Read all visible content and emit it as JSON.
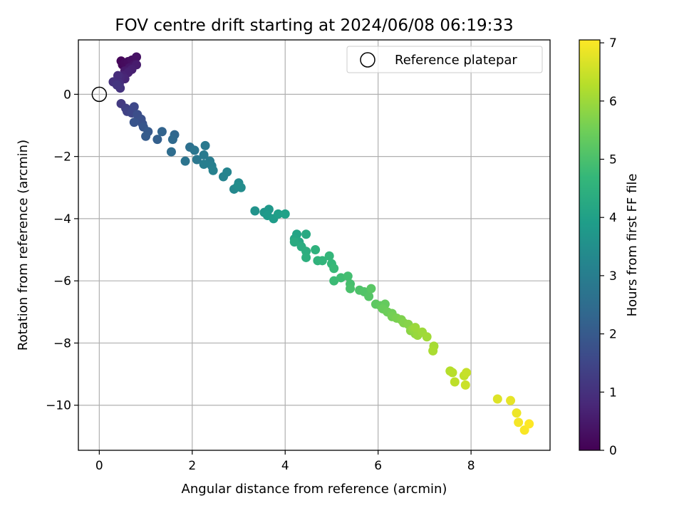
{
  "chart_data": {
    "type": "scatter",
    "title": "FOV centre drift starting at 2024/06/08 06:19:33",
    "xlabel": "Angular distance from reference (arcmin)",
    "ylabel": "Rotation from reference (arcmin)",
    "colorbar_label": "Hours from first FF file",
    "xlim": [
      -0.45,
      9.7
    ],
    "ylim": [
      -11.45,
      1.75
    ],
    "xticks": [
      0,
      2,
      4,
      6,
      8
    ],
    "yticks": [
      0,
      -2,
      -4,
      -6,
      -8,
      -10
    ],
    "xtick_labels": [
      "0",
      "2",
      "4",
      "6",
      "8"
    ],
    "ytick_labels": [
      "0",
      "−2",
      "−4",
      "−6",
      "−8",
      "−10"
    ],
    "colorbar_range": [
      0,
      7.05
    ],
    "colorbar_ticks": [
      0,
      1,
      2,
      3,
      4,
      5,
      6,
      7
    ],
    "colorbar_tick_labels": [
      "0",
      "1",
      "2",
      "3",
      "4",
      "5",
      "6",
      "7"
    ],
    "colormap": "viridis",
    "grid": true,
    "legend_position": "top-right",
    "reference": {
      "label": "Reference platepar",
      "x": 0,
      "y": 0
    },
    "points": [
      [
        0.47,
        1.07,
        0.1
      ],
      [
        0.5,
        0.95,
        0.15
      ],
      [
        0.55,
        1.0,
        0.2
      ],
      [
        0.62,
        1.05,
        0.25
      ],
      [
        0.7,
        1.1,
        0.3
      ],
      [
        0.8,
        1.2,
        0.35
      ],
      [
        0.75,
        0.95,
        0.4
      ],
      [
        0.65,
        0.85,
        0.45
      ],
      [
        0.55,
        0.75,
        0.5
      ],
      [
        0.8,
        0.95,
        0.55
      ],
      [
        0.7,
        0.8,
        0.6
      ],
      [
        0.62,
        0.7,
        0.65
      ],
      [
        0.5,
        0.6,
        0.7
      ],
      [
        0.55,
        0.5,
        0.75
      ],
      [
        0.45,
        0.55,
        0.8
      ],
      [
        0.35,
        0.4,
        0.85
      ],
      [
        0.4,
        0.6,
        0.9
      ],
      [
        0.43,
        0.35,
        0.95
      ],
      [
        0.3,
        0.4,
        1.0
      ],
      [
        0.45,
        0.2,
        1.05
      ],
      [
        0.38,
        0.3,
        1.1
      ],
      [
        0.47,
        -0.3,
        1.2
      ],
      [
        0.57,
        -0.45,
        1.3
      ],
      [
        0.6,
        -0.55,
        1.4
      ],
      [
        0.7,
        -0.6,
        1.5
      ],
      [
        0.75,
        -0.4,
        1.55
      ],
      [
        0.85,
        -0.8,
        1.6
      ],
      [
        0.82,
        -0.65,
        1.7
      ],
      [
        0.9,
        -0.8,
        1.75
      ],
      [
        0.93,
        -0.95,
        1.8
      ],
      [
        0.75,
        -0.9,
        1.85
      ],
      [
        0.95,
        -1.05,
        1.9
      ],
      [
        1.05,
        -1.2,
        2.0
      ],
      [
        1.0,
        -1.35,
        2.05
      ],
      [
        1.25,
        -1.45,
        2.15
      ],
      [
        1.35,
        -1.2,
        2.25
      ],
      [
        1.62,
        -1.3,
        2.35
      ],
      [
        1.58,
        -1.45,
        2.4
      ],
      [
        1.55,
        -1.85,
        2.5
      ],
      [
        1.95,
        -1.7,
        2.6
      ],
      [
        1.85,
        -2.15,
        2.7
      ],
      [
        2.05,
        -1.8,
        2.75
      ],
      [
        2.1,
        -2.1,
        2.8
      ],
      [
        2.28,
        -1.65,
        2.85
      ],
      [
        2.25,
        -1.95,
        2.9
      ],
      [
        2.38,
        -2.15,
        2.95
      ],
      [
        2.25,
        -2.25,
        3.0
      ],
      [
        2.42,
        -2.3,
        3.05
      ],
      [
        2.45,
        -2.45,
        3.1
      ],
      [
        2.67,
        -2.65,
        3.15
      ],
      [
        2.75,
        -2.5,
        3.2
      ],
      [
        2.9,
        -3.05,
        3.3
      ],
      [
        3.0,
        -2.85,
        3.35
      ],
      [
        3.05,
        -3.0,
        3.4
      ],
      [
        2.98,
        -2.95,
        3.45
      ],
      [
        3.35,
        -3.75,
        3.6
      ],
      [
        3.55,
        -3.8,
        3.7
      ],
      [
        3.65,
        -3.7,
        3.75
      ],
      [
        3.62,
        -3.9,
        3.8
      ],
      [
        3.75,
        -4.0,
        3.85
      ],
      [
        3.85,
        -3.85,
        3.95
      ],
      [
        4.0,
        -3.85,
        4.0
      ],
      [
        4.25,
        -4.5,
        4.1
      ],
      [
        4.2,
        -4.65,
        4.15
      ],
      [
        4.3,
        -4.75,
        4.2
      ],
      [
        4.45,
        -4.5,
        4.25
      ],
      [
        4.2,
        -4.75,
        4.3
      ],
      [
        4.35,
        -4.9,
        4.35
      ],
      [
        4.45,
        -5.05,
        4.4
      ],
      [
        4.45,
        -5.25,
        4.45
      ],
      [
        4.65,
        -5.0,
        4.5
      ],
      [
        4.7,
        -5.35,
        4.55
      ],
      [
        4.8,
        -5.35,
        4.6
      ],
      [
        4.95,
        -5.2,
        4.65
      ],
      [
        5.0,
        -5.45,
        4.7
      ],
      [
        5.05,
        -5.6,
        4.75
      ],
      [
        5.05,
        -6.0,
        4.8
      ],
      [
        5.2,
        -5.9,
        4.85
      ],
      [
        5.35,
        -5.85,
        4.9
      ],
      [
        5.4,
        -6.1,
        4.95
      ],
      [
        5.4,
        -6.25,
        5.0
      ],
      [
        5.6,
        -6.3,
        5.05
      ],
      [
        5.7,
        -6.35,
        5.1
      ],
      [
        5.8,
        -6.5,
        5.15
      ],
      [
        5.85,
        -6.25,
        5.2
      ],
      [
        5.95,
        -6.75,
        5.25
      ],
      [
        6.05,
        -6.8,
        5.3
      ],
      [
        6.15,
        -6.75,
        5.35
      ],
      [
        6.1,
        -6.9,
        5.4
      ],
      [
        6.2,
        -7.0,
        5.45
      ],
      [
        6.3,
        -7.05,
        5.5
      ],
      [
        6.3,
        -7.15,
        5.55
      ],
      [
        6.4,
        -7.2,
        5.6
      ],
      [
        6.5,
        -7.25,
        5.65
      ],
      [
        6.55,
        -7.35,
        5.7
      ],
      [
        6.65,
        -7.4,
        5.75
      ],
      [
        6.7,
        -7.6,
        5.8
      ],
      [
        6.8,
        -7.7,
        5.85
      ],
      [
        6.75,
        -7.55,
        5.9
      ],
      [
        6.85,
        -7.75,
        5.95
      ],
      [
        6.8,
        -7.5,
        5.98
      ],
      [
        6.95,
        -7.65,
        6.0
      ],
      [
        7.05,
        -7.8,
        6.05
      ],
      [
        7.2,
        -8.1,
        6.1
      ],
      [
        7.18,
        -8.25,
        6.15
      ],
      [
        7.55,
        -8.9,
        6.25
      ],
      [
        7.6,
        -8.95,
        6.3
      ],
      [
        7.65,
        -9.25,
        6.35
      ],
      [
        7.85,
        -9.05,
        6.4
      ],
      [
        7.9,
        -8.95,
        6.45
      ],
      [
        7.88,
        -9.35,
        6.5
      ],
      [
        8.57,
        -9.8,
        6.7
      ],
      [
        8.85,
        -9.85,
        6.8
      ],
      [
        8.98,
        -10.25,
        6.88
      ],
      [
        9.02,
        -10.55,
        6.95
      ],
      [
        9.15,
        -10.8,
        7.0
      ],
      [
        9.25,
        -10.6,
        7.05
      ]
    ]
  }
}
